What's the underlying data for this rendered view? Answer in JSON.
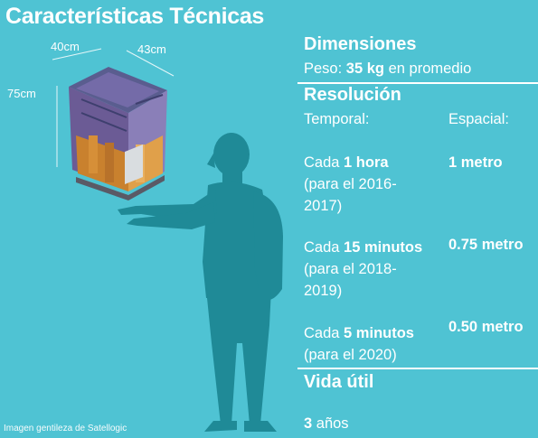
{
  "title": "Características Técnicas",
  "dimensions_labels": {
    "width": "40cm",
    "depth": "43cm",
    "height": "75cm"
  },
  "specs": {
    "dimensiones": {
      "heading": "Dimensiones",
      "peso_prefix": "Peso:",
      "peso_value": "35 kg",
      "peso_suffix": "en promedio"
    },
    "resolucion": {
      "heading": "Resolución",
      "col_temporal": "Temporal:",
      "col_espacial": "Espacial:",
      "rows": [
        {
          "prefix": "Cada",
          "value": "1 hora",
          "period_line1": "(para el 2016-",
          "period_line2": "2017)",
          "spatial": "1 metro"
        },
        {
          "prefix": "Cada",
          "value": "15 minutos",
          "period_line1": "(para el 2018-",
          "period_line2": "2019)",
          "spatial": "0.75 metro"
        },
        {
          "prefix": "Cada",
          "value": "5 minutos",
          "period_line1": "(para el 2020)",
          "period_line2": "",
          "spatial": "0.50 metro"
        }
      ]
    },
    "vida_util": {
      "heading": "Vida útil",
      "value": "3",
      "unit": "años"
    }
  },
  "credit": "Imagen gentileza de Satellogic",
  "colors": {
    "background": "#4fc3d3",
    "silhouette": "#1f8a97",
    "text": "#ffffff"
  }
}
